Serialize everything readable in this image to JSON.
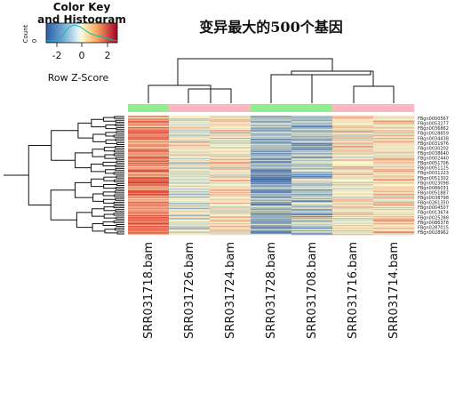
{
  "title": "变异最大的500个基因",
  "color_key": {
    "title_line1": "Color Key",
    "title_line2": "and Histogram",
    "count_label": "Count",
    "count_zero": "0",
    "xlabel": "Row Z-Score",
    "ticks": [
      "-2",
      "0",
      "2"
    ]
  },
  "chart_data": {
    "type": "heatmap",
    "title": "变异最大的500个基因",
    "columns": [
      "SRR031718.bam",
      "SRR031726.bam",
      "SRR031724.bam",
      "SRR031728.bam",
      "SRR031708.bam",
      "SRR031716.bam",
      "SRR031714.bam"
    ],
    "column_groups": [
      "#90ee90",
      "#ffb6c1",
      "#ffb6c1",
      "#90ee90",
      "#90ee90",
      "#ffb6c1",
      "#ffb6c1"
    ],
    "row_labels_shown": [
      "FBgn0000567",
      "FBgn0053277",
      "FBgn0036862",
      "FBgn0028859",
      "FBgn0034438",
      "FBgn0031976",
      "FBgn0030202",
      "FBgn0038640",
      "FBgn0002440",
      "FBgn0051706",
      "FBgn0051125",
      "FBgn0031223",
      "FBgn0051302",
      "FBgn0023098",
      "FBgn0086031",
      "FBgn0051887",
      "FBgn0038798",
      "FBgn0261350",
      "FBgn0004507",
      "FBgn0013674",
      "FBgn0025288",
      "FBgn0086378",
      "FBgn0287015",
      "FBgn0028962"
    ],
    "n_rows": 500,
    "color_scale": {
      "min": -2.5,
      "max": 2.5,
      "low": "#2c5ba8",
      "mid": "#fbfbd0",
      "high": "#d7301f"
    },
    "colorkey_xlabel": "Row Z-Score",
    "colorkey_ticks": [
      -2,
      0,
      2
    ]
  }
}
